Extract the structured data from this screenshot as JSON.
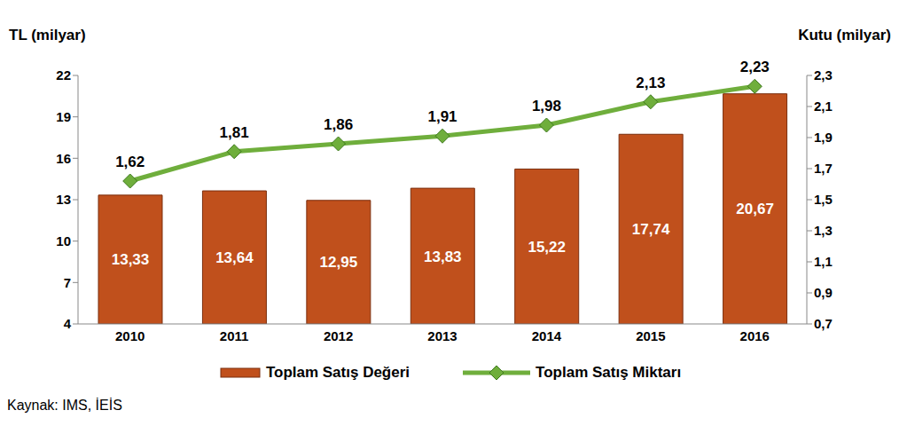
{
  "chart_data": {
    "type": "bar",
    "y_label": "TL (milyar)",
    "y2_label": "Kutu (milyar)",
    "annotation": "Kaynak: IMS, İEİS",
    "categories": [
      "2010",
      "2011",
      "2012",
      "2013",
      "2014",
      "2015",
      "2016"
    ],
    "series": [
      {
        "name": "Toplam Satış Değeri",
        "type": "bar",
        "color": "#c0501c",
        "values": [
          13.33,
          13.64,
          12.95,
          13.83,
          15.22,
          17.74,
          20.67
        ],
        "value_labels": [
          "13,33",
          "13,64",
          "12,95",
          "13,83",
          "15,22",
          "17,74",
          "20,67"
        ]
      },
      {
        "name": "Toplam Satış Miktarı",
        "type": "line",
        "axis": "y2",
        "color": "#6fae3c",
        "marker": "diamond",
        "values": [
          1.62,
          1.81,
          1.86,
          1.91,
          1.98,
          2.13,
          2.23
        ],
        "value_labels": [
          "1,62",
          "1,81",
          "1,86",
          "1,91",
          "1,98",
          "2,13",
          "2,23"
        ]
      }
    ],
    "ylim": [
      4,
      22
    ],
    "yticks": [
      4,
      7,
      10,
      13,
      16,
      19,
      22
    ],
    "y2lim": [
      0.7,
      2.3
    ],
    "y2ticks": [
      {
        "value": 0.7,
        "label": "0,7"
      },
      {
        "value": 0.9,
        "label": "0,9"
      },
      {
        "value": 1.1,
        "label": "1,1"
      },
      {
        "value": 1.3,
        "label": "1,3"
      },
      {
        "value": 1.5,
        "label": "1,5"
      },
      {
        "value": 1.7,
        "label": "1,7"
      },
      {
        "value": 1.9,
        "label": "1,9"
      },
      {
        "value": 2.1,
        "label": "2,1"
      },
      {
        "value": 2.3,
        "label": "2,3"
      }
    ],
    "data_labels": true,
    "grid": false,
    "legend": "bottom"
  }
}
